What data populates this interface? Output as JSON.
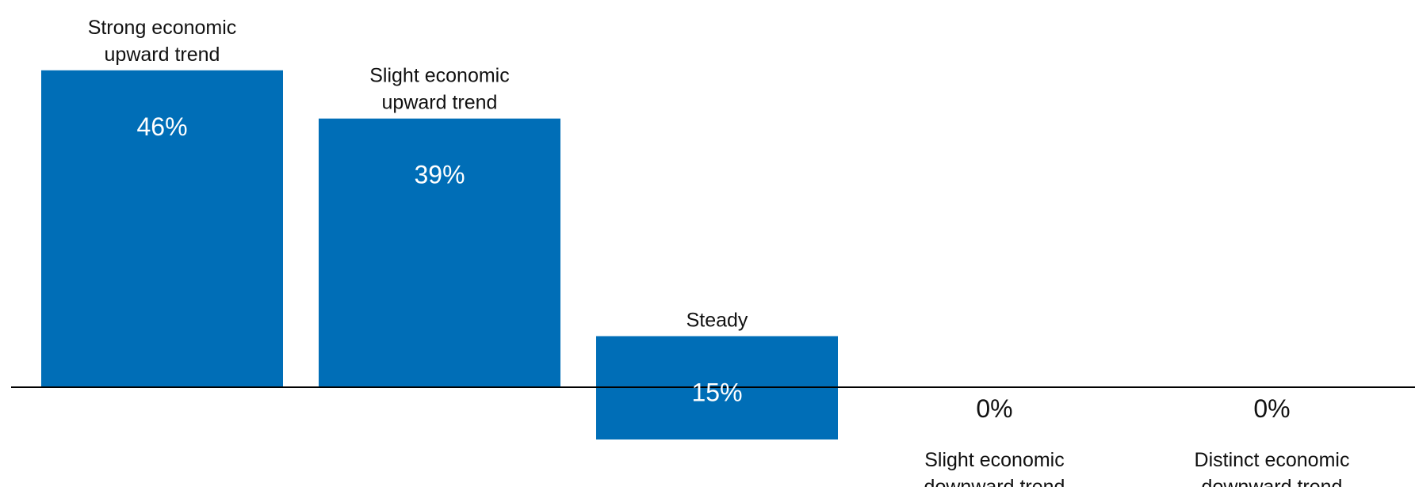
{
  "chart_data": {
    "type": "bar",
    "title": "",
    "xlabel": "",
    "ylabel": "",
    "categories": [
      [
        "Strong economic",
        "upward trend"
      ],
      [
        "Slight economic",
        "upward trend"
      ],
      [
        "Steady"
      ],
      [
        "Slight economic",
        "downward trend"
      ],
      [
        "Distinct economic",
        "downward trend"
      ]
    ],
    "values": [
      46,
      39,
      15,
      0,
      0
    ],
    "value_labels": [
      "46%",
      "39%",
      "15%",
      "0%",
      "0%"
    ],
    "colors": {
      "bar": "#006eb7",
      "value_inside": "#ffffff",
      "value_outside": "#111111",
      "axis": "#000000"
    },
    "grid": false,
    "legend": "none"
  }
}
